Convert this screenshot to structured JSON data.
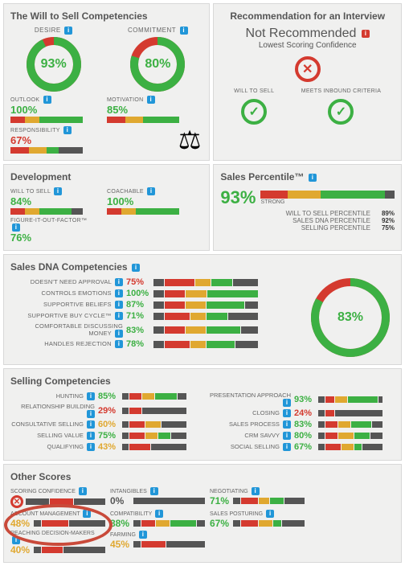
{
  "colors": {
    "green": "#3cb043",
    "red": "#d43a2f",
    "yellow": "#e0a830",
    "dark": "#555555",
    "panel_bg": "#f0f0ef"
  },
  "will_to_sell": {
    "title": "The Will to Sell Competencies",
    "gauges": [
      {
        "label": "DESIRE",
        "value": 93,
        "color": "#3cb043",
        "ring_base": "#d43a2f"
      },
      {
        "label": "COMMITMENT",
        "value": 80,
        "color": "#3cb043",
        "ring_base": "#d43a2f"
      }
    ],
    "stats": [
      {
        "label": "OUTLOOK",
        "value": 100,
        "color": "#3cb043",
        "bar": [
          "#d43a2f",
          "#e0a830",
          "#3cb043"
        ],
        "ratios": [
          20,
          20,
          60
        ]
      },
      {
        "label": "MOTIVATION",
        "value": 85,
        "color": "#3cb043",
        "bar": [
          "#d43a2f",
          "#e0a830",
          "#3cb043"
        ],
        "ratios": [
          25,
          25,
          50
        ]
      },
      {
        "label": "RESPONSIBILITY",
        "value": 67,
        "color": "#d43a2f",
        "bar": [
          "#d43a2f",
          "#e0a830",
          "#3cb043",
          "#555"
        ],
        "ratios": [
          25,
          25,
          17,
          33
        ]
      }
    ]
  },
  "recommendation": {
    "title": "Recommendation for an Interview",
    "main": "Not Recommended",
    "sub": "Lowest Scoring Confidence",
    "checks": [
      {
        "label": "WILL TO SELL",
        "ok": true
      },
      {
        "label": "MEETS INBOUND CRITERIA",
        "ok": true
      }
    ]
  },
  "development": {
    "title": "Development",
    "items": [
      {
        "label": "WILL TO SELL",
        "value": 84,
        "color": "#3cb043",
        "bar": [
          "#d43a2f",
          "#e0a830",
          "#3cb043",
          "#555"
        ],
        "ratios": [
          20,
          20,
          44,
          16
        ]
      },
      {
        "label": "COACHABLE",
        "value": 100,
        "color": "#3cb043",
        "bar": [
          "#d43a2f",
          "#e0a830",
          "#3cb043"
        ],
        "ratios": [
          20,
          20,
          60
        ]
      },
      {
        "label": "FIGURE-IT-OUT-FACTOR™",
        "value": 76,
        "color": "#3cb043",
        "bar": [],
        "ratios": []
      }
    ]
  },
  "percentile": {
    "title": "Sales Percentile™",
    "value": 93,
    "rating": "STRONG",
    "bar": [
      "#d43a2f",
      "#e0a830",
      "#3cb043",
      "#555"
    ],
    "ratios": [
      20,
      25,
      48,
      7
    ],
    "rows": [
      {
        "label": "WILL TO SELL PERCENTILE",
        "value": "89%"
      },
      {
        "label": "SALES DNA PERCENTILE",
        "value": "92%"
      },
      {
        "label": "SELLING PERCENTILE",
        "value": "75%"
      }
    ]
  },
  "dna": {
    "title": "Sales DNA Competencies",
    "gauge": 83,
    "rows": [
      {
        "label": "DOESN'T NEED APPROVAL",
        "value": 75,
        "color": "#d43a2f",
        "bar": [
          "#555",
          "#d43a2f",
          "#e0a830",
          "#3cb043",
          "#555"
        ],
        "ratios": [
          10,
          30,
          15,
          20,
          25
        ]
      },
      {
        "label": "CONTROLS EMOTIONS",
        "value": 100,
        "color": "#3cb043",
        "bar": [
          "#555",
          "#d43a2f",
          "#e0a830",
          "#3cb043"
        ],
        "ratios": [
          10,
          20,
          20,
          50
        ]
      },
      {
        "label": "SUPPORTIVE BELIEFS",
        "value": 87,
        "color": "#3cb043",
        "bar": [
          "#555",
          "#d43a2f",
          "#e0a830",
          "#3cb043",
          "#555"
        ],
        "ratios": [
          10,
          20,
          20,
          37,
          13
        ]
      },
      {
        "label": "SUPPORTIVE BUY CYCLE™",
        "value": 71,
        "color": "#3cb043",
        "bar": [
          "#555",
          "#d43a2f",
          "#e0a830",
          "#3cb043",
          "#555"
        ],
        "ratios": [
          10,
          25,
          15,
          21,
          29
        ]
      },
      {
        "label": "COMFORTABLE DISCUSSING MONEY",
        "value": 83,
        "color": "#3cb043",
        "bar": [
          "#555",
          "#d43a2f",
          "#e0a830",
          "#3cb043",
          "#555"
        ],
        "ratios": [
          10,
          20,
          20,
          33,
          17
        ]
      },
      {
        "label": "HANDLES REJECTION",
        "value": 78,
        "color": "#3cb043",
        "bar": [
          "#555",
          "#d43a2f",
          "#e0a830",
          "#3cb043",
          "#555"
        ],
        "ratios": [
          10,
          25,
          15,
          28,
          22
        ]
      }
    ]
  },
  "selling": {
    "title": "Selling Competencies",
    "left": [
      {
        "label": "HUNTING",
        "value": 85,
        "color": "#3cb043",
        "ratios": [
          10,
          20,
          20,
          35,
          15
        ]
      },
      {
        "label": "RELATIONSHIP BUILDING",
        "value": 29,
        "color": "#d43a2f",
        "ratios": [
          10,
          19,
          0,
          0,
          71
        ]
      },
      {
        "label": "CONSULTATIVE SELLING",
        "value": 60,
        "color": "#e0a830",
        "ratios": [
          10,
          25,
          25,
          0,
          40
        ]
      },
      {
        "label": "SELLING VALUE",
        "value": 75,
        "color": "#3cb043",
        "ratios": [
          10,
          25,
          20,
          20,
          25
        ]
      },
      {
        "label": "QUALIFYING",
        "value": 43,
        "color": "#e0a830",
        "ratios": [
          10,
          33,
          0,
          0,
          57
        ]
      }
    ],
    "right": [
      {
        "label": "PRESENTATION APPROACH",
        "value": 93,
        "color": "#3cb043",
        "ratios": [
          10,
          15,
          20,
          48,
          7
        ]
      },
      {
        "label": "CLOSING",
        "value": 24,
        "color": "#d43a2f",
        "ratios": [
          10,
          14,
          0,
          0,
          76
        ]
      },
      {
        "label": "SALES PROCESS",
        "value": 83,
        "color": "#3cb043",
        "ratios": [
          10,
          20,
          20,
          33,
          17
        ]
      },
      {
        "label": "CRM SAVVY",
        "value": 80,
        "color": "#3cb043",
        "ratios": [
          10,
          20,
          25,
          25,
          20
        ]
      },
      {
        "label": "SOCIAL SELLING",
        "value": 67,
        "color": "#3cb043",
        "ratios": [
          10,
          25,
          20,
          12,
          33
        ]
      }
    ],
    "palette": [
      "#555",
      "#d43a2f",
      "#e0a830",
      "#3cb043",
      "#555"
    ]
  },
  "other": {
    "title": "Other Scores",
    "items": [
      {
        "label": "SCORING CONFIDENCE",
        "value": "",
        "color": "#d43a2f",
        "icon": "x",
        "ratios": [
          30,
          30,
          0,
          0,
          40
        ]
      },
      {
        "label": "INTANGIBLES",
        "value": 0,
        "color": "#555",
        "ratios": [
          0,
          0,
          0,
          0,
          100
        ]
      },
      {
        "label": "NEGOTIATING",
        "value": 71,
        "color": "#3cb043",
        "ratios": [
          10,
          25,
          15,
          21,
          29
        ]
      },
      {
        "label": "ACCOUNT MANAGEMENT",
        "value": 48,
        "color": "#e0a830",
        "ratios": [
          10,
          38,
          0,
          0,
          52
        ]
      },
      {
        "label": "COMPATIBILITY",
        "value": 88,
        "color": "#3cb043",
        "ratios": [
          10,
          20,
          20,
          38,
          12
        ]
      },
      {
        "label": "SALES POSTURING",
        "value": 67,
        "color": "#3cb043",
        "ratios": [
          10,
          25,
          20,
          12,
          33
        ]
      },
      {
        "label": "REACHING DECISION-MAKERS",
        "value": 40,
        "color": "#e0a830",
        "ratios": [
          10,
          30,
          0,
          0,
          60
        ]
      },
      {
        "label": "FARMING",
        "value": 45,
        "color": "#e0a830",
        "ratios": [
          10,
          35,
          0,
          0,
          55
        ]
      }
    ],
    "palette": [
      "#555",
      "#d43a2f",
      "#e0a830",
      "#3cb043",
      "#555"
    ]
  }
}
